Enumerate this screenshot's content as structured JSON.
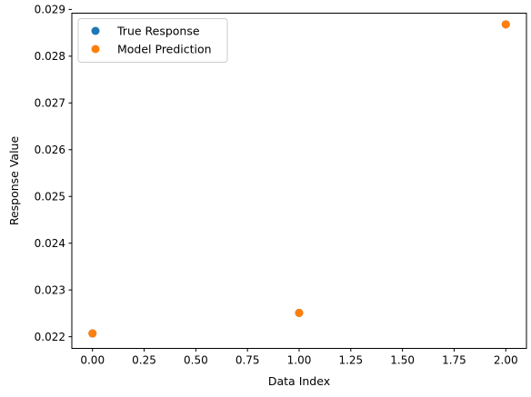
{
  "chart_data": {
    "type": "scatter",
    "title": "",
    "xlabel": "Data Index",
    "ylabel": "Response Value",
    "xlim": [
      -0.1,
      2.1
    ],
    "ylim": [
      0.02175,
      0.02892
    ],
    "xticks": [
      0.0,
      0.25,
      0.5,
      0.75,
      1.0,
      1.25,
      1.5,
      1.75,
      2.0
    ],
    "xtick_labels": [
      "0.00",
      "0.25",
      "0.50",
      "0.75",
      "1.00",
      "1.25",
      "1.50",
      "1.75",
      "2.00"
    ],
    "yticks": [
      0.022,
      0.023,
      0.024,
      0.025,
      0.026,
      0.027,
      0.028,
      0.029
    ],
    "ytick_labels": [
      "0.022",
      "0.023",
      "0.024",
      "0.025",
      "0.026",
      "0.027",
      "0.028",
      "0.029"
    ],
    "grid": false,
    "legend_position": "top-left",
    "series": [
      {
        "name": "True Response",
        "color": "#1f77b4",
        "x": [
          0,
          1,
          2
        ],
        "y": [
          0.02207,
          0.02251,
          0.02868
        ]
      },
      {
        "name": "Model Prediction",
        "color": "#ff7f0e",
        "x": [
          0,
          1,
          2
        ],
        "y": [
          0.02207,
          0.02251,
          0.02868
        ]
      }
    ]
  }
}
